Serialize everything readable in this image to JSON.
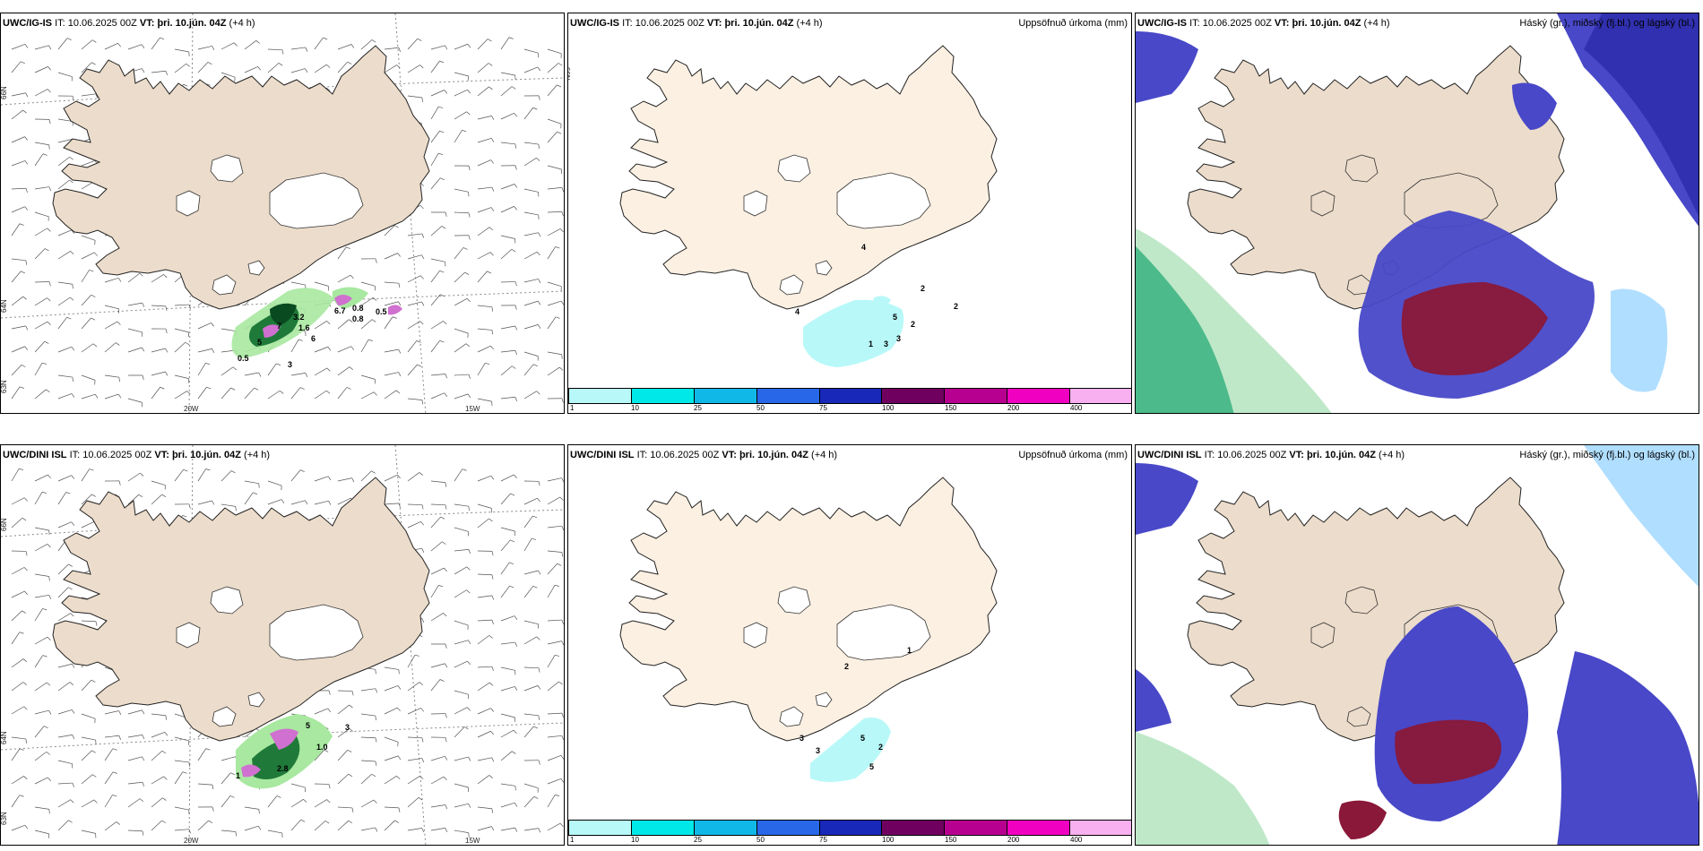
{
  "rows": [
    {
      "model": "UWC/IG-IS",
      "it_label": "IT:",
      "it_value": "10.06.2025 00Z",
      "vt_label": "VT:",
      "vt_value": "þri. 10.jún. 04Z",
      "lead": "(+4 h)"
    },
    {
      "model": "UWC/DINI ISL",
      "it_label": "IT:",
      "it_value": "10.06.2025 00Z",
      "vt_label": "VT:",
      "vt_value": "þri. 10.jún. 04Z",
      "lead": "(+4 h)"
    }
  ],
  "precip_title": "Uppsöfnuð úrkoma (mm)",
  "cloud_title": "Háský (gr.), miðský (fj.bl.) og lágský (bl.)",
  "graticule": {
    "lat_66": "66N",
    "lat_64": "64N",
    "lat_63": "63N",
    "lon_20": "20W",
    "lon_15": "15W"
  },
  "colorbar": {
    "ticks": [
      "1",
      "10",
      "25",
      "50",
      "75",
      "100",
      "150",
      "200",
      "400"
    ],
    "colors": [
      "#b8f8f8",
      "#00e8e8",
      "#10b8e8",
      "#2868e8",
      "#1828b8",
      "#700060",
      "#b80090",
      "#f000c0",
      "#f8b0f0"
    ]
  },
  "panel_labels": {
    "r0_wind": [
      "0.5",
      "3",
      "6.7",
      "0.8",
      "0.8",
      "0.5",
      "5",
      "3.2",
      "7",
      "1.6",
      "6"
    ],
    "r0_precip": [
      "4",
      "4",
      "2",
      "2",
      "5",
      "2",
      "3",
      "3",
      "1"
    ],
    "r1_wind": [
      "1",
      "2.8",
      "1.0",
      "5",
      "3"
    ],
    "r1_precip": [
      "1",
      "2",
      "3",
      "3",
      "5",
      "2",
      "5"
    ]
  },
  "colors": {
    "land": "#ecdccb",
    "land_light": "#fcf0e2",
    "high_cloud_green": "#2fae7a",
    "mid_cloud_blue": "#4848c8",
    "low_cloud_red": "#8a1838",
    "ice": "#ffffff"
  }
}
